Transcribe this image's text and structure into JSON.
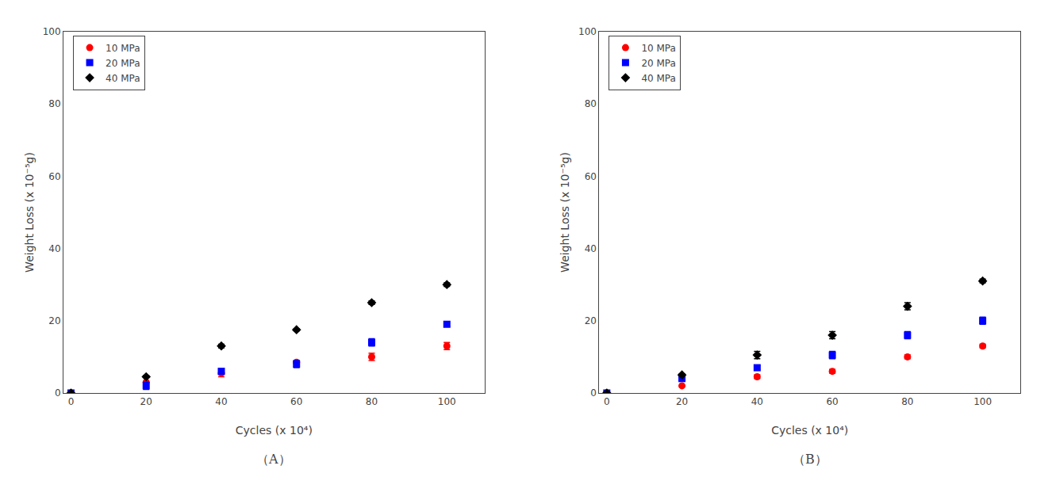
{
  "chart_data": [
    {
      "type": "scatter",
      "title": "（A）",
      "xlabel": "Cycles (x 10⁴)",
      "ylabel": "Weight Loss (x 10⁻⁵g)",
      "x": [
        0,
        20,
        40,
        60,
        80,
        100
      ],
      "xlim": [
        -2,
        110
      ],
      "xticks": [
        0,
        20,
        40,
        60,
        80,
        100
      ],
      "ylim": [
        0,
        100
      ],
      "yticks": [
        0,
        20,
        40,
        60,
        80,
        100
      ],
      "grid": false,
      "legend": "upper left",
      "series": [
        {
          "name": "10 MPa",
          "color": "#ff0000",
          "marker": "circle",
          "values": [
            0,
            3.0,
            5.5,
            8.5,
            10.0,
            13.0
          ],
          "error": [
            0,
            0,
            1.0,
            0.5,
            1.0,
            1.0
          ]
        },
        {
          "name": "20 MPa",
          "color": "#0000ff",
          "marker": "square",
          "values": [
            0,
            2.0,
            6.0,
            8.0,
            14.0,
            19.0
          ],
          "error": [
            0,
            1.0,
            0.5,
            1.0,
            1.0,
            0.5
          ]
        },
        {
          "name": "40 MPa",
          "color": "#000000",
          "marker": "diamond",
          "values": [
            0,
            4.5,
            13.0,
            17.5,
            25.0,
            30.0
          ],
          "error": [
            0,
            0.3,
            0.5,
            0.3,
            0.5,
            0.5
          ]
        }
      ]
    },
    {
      "type": "scatter",
      "title": "（B）",
      "xlabel": "Cycles (x 10⁴)",
      "ylabel": "Weight Loss (x 10⁻⁵g)",
      "x": [
        0,
        20,
        40,
        60,
        80,
        100
      ],
      "xlim": [
        -2,
        110
      ],
      "xticks": [
        0,
        20,
        40,
        60,
        80,
        100
      ],
      "ylim": [
        0,
        100
      ],
      "yticks": [
        0,
        20,
        40,
        60,
        80,
        100
      ],
      "grid": false,
      "legend": "upper left",
      "series": [
        {
          "name": "10 MPa",
          "color": "#ff0000",
          "marker": "circle",
          "values": [
            0,
            2.0,
            4.5,
            6.0,
            10.0,
            13.0
          ],
          "error": [
            0,
            0,
            0.5,
            0.5,
            0.5,
            0.5
          ]
        },
        {
          "name": "20 MPa",
          "color": "#0000ff",
          "marker": "square",
          "values": [
            0,
            4.0,
            7.0,
            10.5,
            16.0,
            20.0
          ],
          "error": [
            0,
            0.5,
            0.5,
            1.0,
            1.0,
            1.0
          ]
        },
        {
          "name": "40 MPa",
          "color": "#000000",
          "marker": "diamond",
          "values": [
            0,
            5.0,
            10.5,
            16.0,
            24.0,
            31.0
          ],
          "error": [
            0,
            0.3,
            1.0,
            1.0,
            1.0,
            0.5
          ]
        }
      ]
    }
  ]
}
